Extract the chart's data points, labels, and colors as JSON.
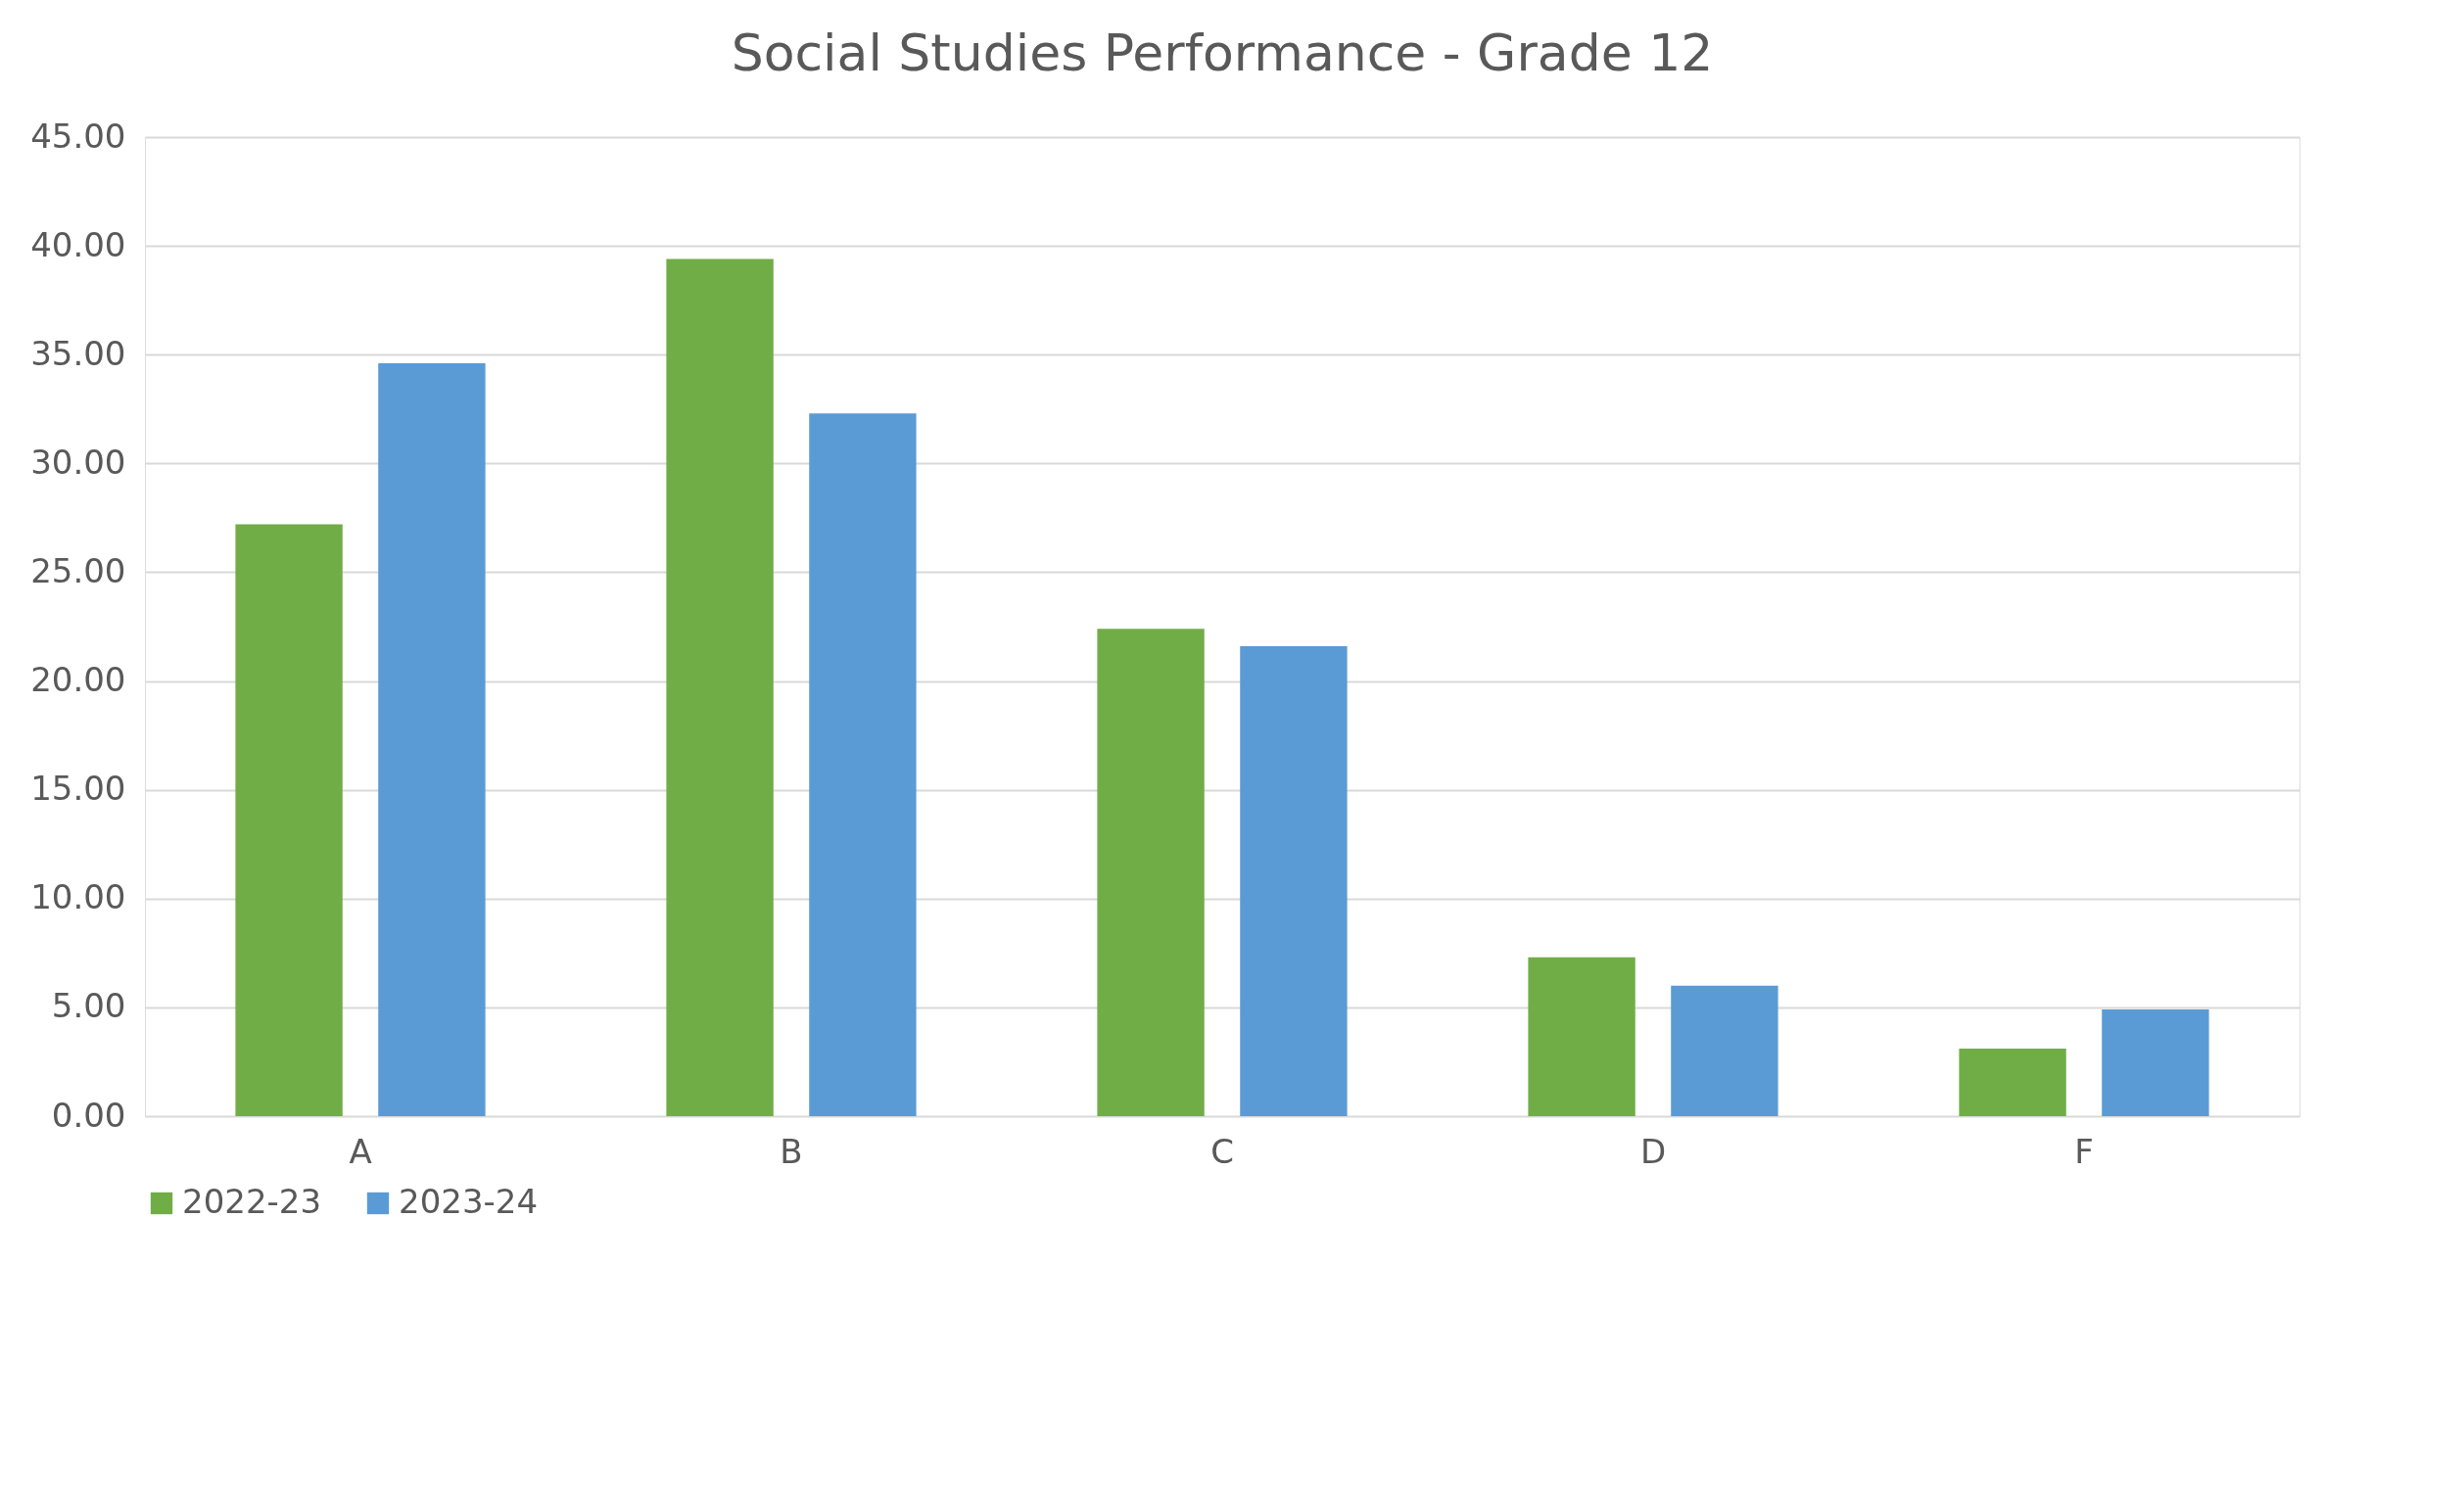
{
  "chart_data": {
    "type": "bar",
    "title": "Social Studies Performance - Grade 12",
    "categories": [
      "A",
      "B",
      "C",
      "D",
      "F"
    ],
    "series": [
      {
        "name": "2022-23",
        "color": "#70ad47",
        "values": [
          27.2,
          39.4,
          22.4,
          7.3,
          3.1
        ]
      },
      {
        "name": "2023-24",
        "color": "#5b9bd5",
        "values": [
          34.6,
          32.3,
          21.6,
          6.0,
          4.9
        ]
      }
    ],
    "ylim": [
      0,
      45
    ],
    "yticks": [
      {
        "value": 0,
        "label": "0.00"
      },
      {
        "value": 5,
        "label": "5.00"
      },
      {
        "value": 10,
        "label": "10.00"
      },
      {
        "value": 15,
        "label": "15.00"
      },
      {
        "value": 20,
        "label": "20.00"
      },
      {
        "value": 25,
        "label": "25.00"
      },
      {
        "value": 30,
        "label": "30.00"
      },
      {
        "value": 35,
        "label": "35.00"
      },
      {
        "value": 40,
        "label": "40.00"
      },
      {
        "value": 45,
        "label": "45.00"
      }
    ],
    "grid": "y",
    "legend": "bottom"
  }
}
